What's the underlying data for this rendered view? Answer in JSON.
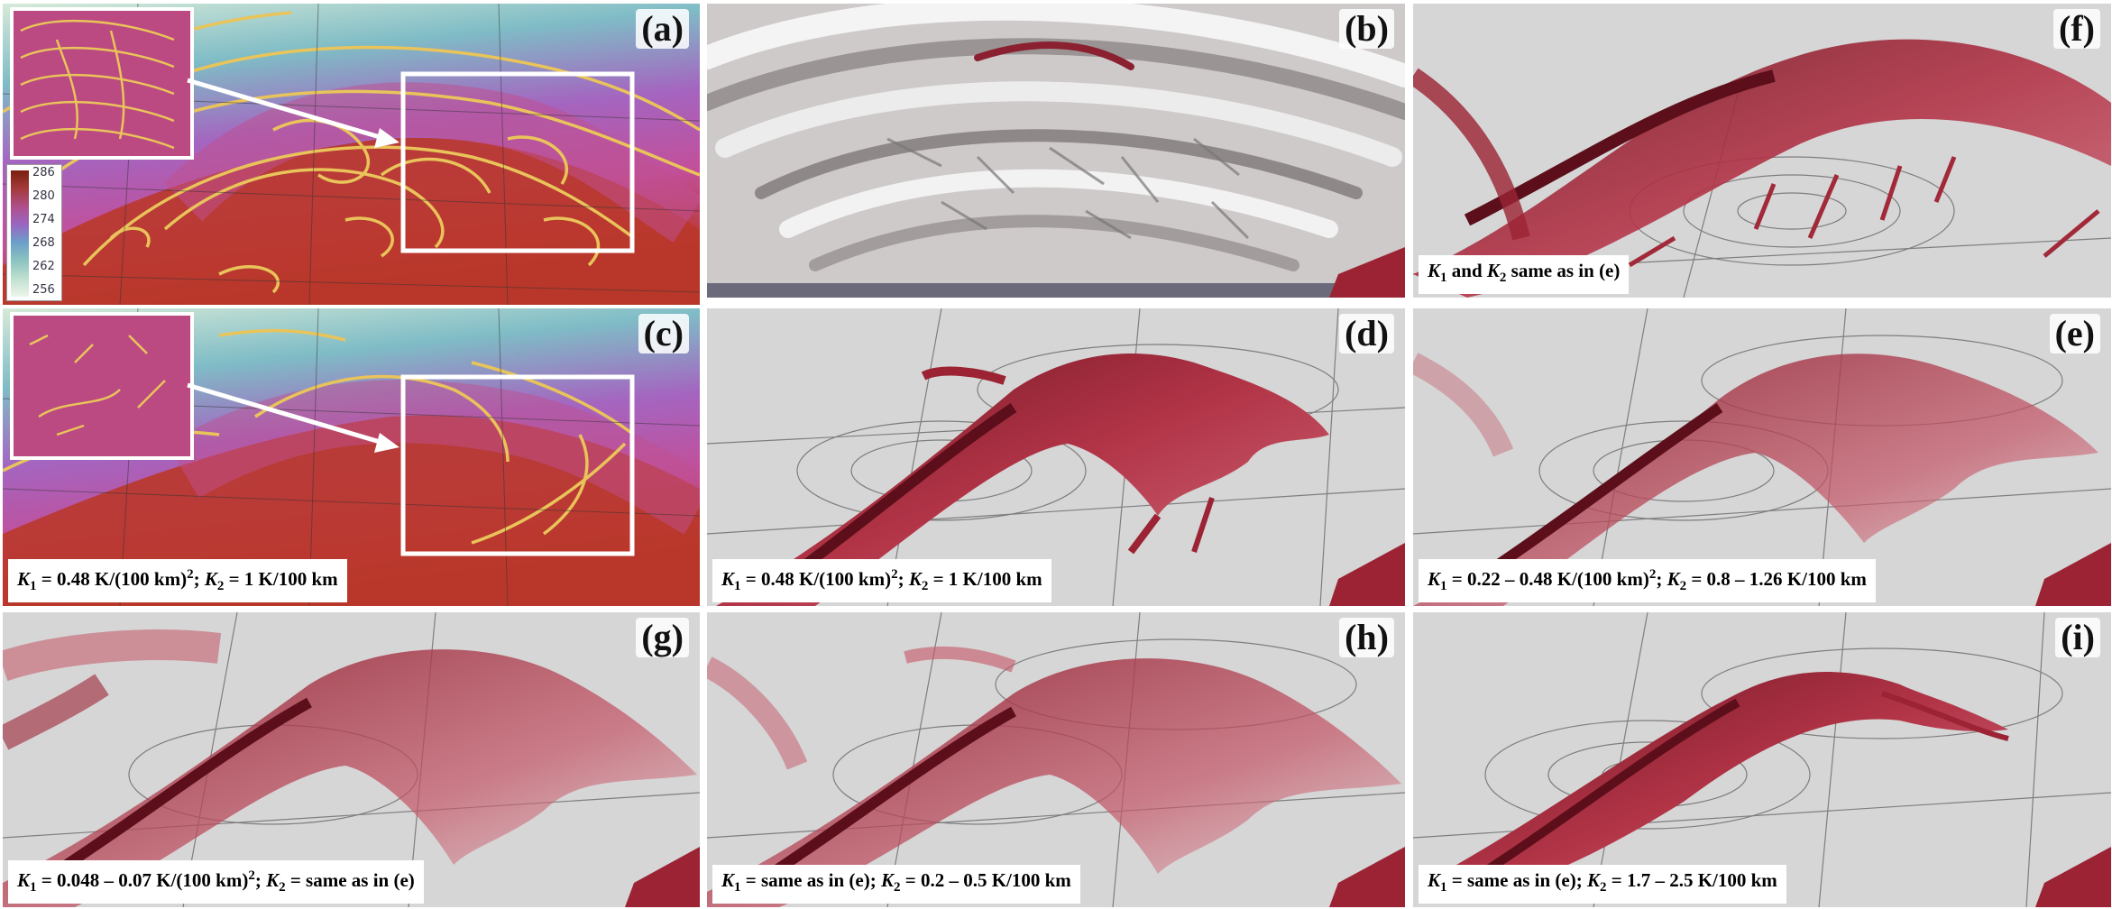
{
  "panels": {
    "a": {
      "label": "(a)"
    },
    "b": {
      "label": "(b)"
    },
    "c": {
      "label": "(c)"
    },
    "d": {
      "label": "(d)"
    },
    "e": {
      "label": "(e)"
    },
    "f": {
      "label": "(f)"
    },
    "g": {
      "label": "(g)"
    },
    "h": {
      "label": "(h)"
    },
    "i": {
      "label": "(i)"
    }
  },
  "colorbar": {
    "ticks": [
      "286",
      "280",
      "274",
      "268",
      "262",
      "256"
    ]
  },
  "captions": {
    "c": {
      "k1": "K",
      "k1sub": "1",
      "k1val": " = 0.48 K/(100 km)",
      "k1sup": "2",
      "k2": "K",
      "k2sub": "2",
      "k2val": " = 1 K/100 km"
    },
    "d": {
      "k1": "K",
      "k1sub": "1",
      "k1val": " = 0.48 K/(100 km)",
      "k1sup": "2",
      "k2": "K",
      "k2sub": "2",
      "k2val": " = 1 K/100 km"
    },
    "e": {
      "k1": "K",
      "k1sub": "1",
      "k1val": " = 0.22 – 0.48 K/(100 km)",
      "k1sup": "2",
      "k2": "K",
      "k2sub": "2",
      "k2val": " = 0.8 – 1.26 K/100 km"
    },
    "f": {
      "k1": "K",
      "k1sub": "1",
      "mid": " and ",
      "k2": "K",
      "k2sub": "2",
      "k2val": " same as in (e)"
    },
    "g": {
      "k1": "K",
      "k1sub": "1",
      "k1val": " = 0.048 – 0.07 K/(100 km)",
      "k1sup": "2",
      "k2": "K",
      "k2sub": "2",
      "k2val": " = same as in (e)"
    },
    "h": {
      "k1": "K",
      "k1sub": "1",
      "k1val": " = same as in (e); ",
      "k2": "K",
      "k2sub": "2",
      "k2val": " = 0.2 – 0.5 K/100 km"
    },
    "i": {
      "k1": "K",
      "k1sub": "1",
      "k1val": " = same as in (e); ",
      "k2": "K",
      "k2sub": "2",
      "k2val": " = 1.7 – 2.5 K/100 km"
    }
  },
  "colors": {
    "front_red": "#9b2333",
    "front_light": "#d98a95",
    "isoline_yellow": "#e9c45a",
    "gray_ground": "#d8d8d8"
  }
}
